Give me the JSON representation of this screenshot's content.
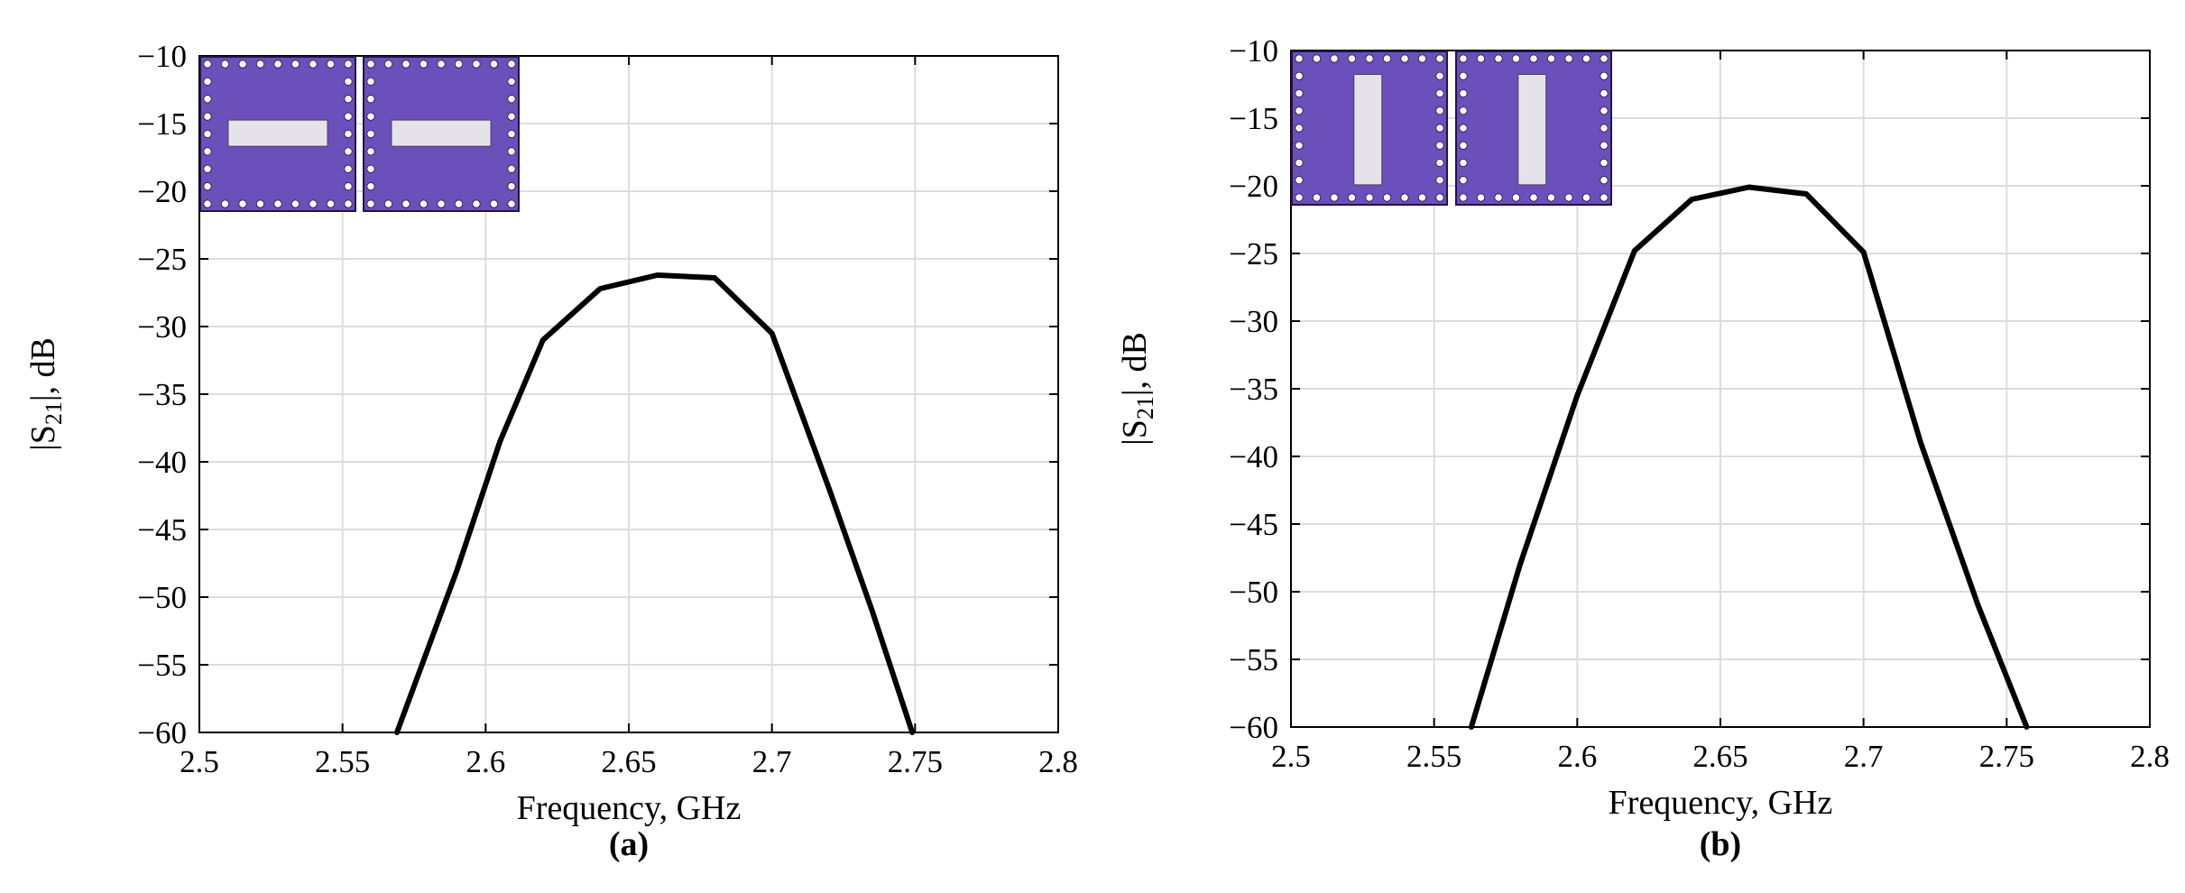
{
  "colors": {
    "curve": "#000000",
    "grid": "#dcdcdc",
    "inset_fill": "#6b4fbb",
    "inset_slot": "#e6e2e9",
    "inset_via": "#ffffff"
  },
  "chart_data": [
    {
      "type": "line",
      "panel_label": "(a)",
      "xlabel": "Frequency, GHz",
      "ylabel_prefix": "|S",
      "ylabel_sub": "21",
      "ylabel_suffix": "|, dB",
      "xlim": [
        2.5,
        2.8
      ],
      "ylim": [
        -60,
        -10
      ],
      "xticks": [
        2.5,
        2.55,
        2.6,
        2.65,
        2.7,
        2.75,
        2.8
      ],
      "xtick_labels": [
        "2.5",
        "2.55",
        "2.6",
        "2.65",
        "2.7",
        "2.75",
        "2.8"
      ],
      "yticks": [
        -10,
        -15,
        -20,
        -25,
        -30,
        -35,
        -40,
        -45,
        -50,
        -55,
        -60
      ],
      "ytick_labels": [
        "−10",
        "−15",
        "−20",
        "−25",
        "−30",
        "−35",
        "−40",
        "−45",
        "−50",
        "−55",
        "−60"
      ],
      "grid": true,
      "inset": "two via-fenced cavities with horizontal slots (top-left)",
      "inset_orientation": "horizontal",
      "series": [
        {
          "x": [
            2.569,
            2.59,
            2.605,
            2.62,
            2.64,
            2.66,
            2.68,
            2.7,
            2.72,
            2.735,
            2.749
          ],
          "y": [
            -60,
            -48,
            -38.5,
            -31,
            -27.2,
            -26.2,
            -26.4,
            -30.5,
            -42,
            -51,
            -60
          ]
        }
      ]
    },
    {
      "type": "line",
      "panel_label": "(b)",
      "xlabel": "Frequency, GHz",
      "ylabel_prefix": "|S",
      "ylabel_sub": "21",
      "ylabel_suffix": "|, dB",
      "xlim": [
        2.5,
        2.8
      ],
      "ylim": [
        -60,
        -10
      ],
      "xticks": [
        2.5,
        2.55,
        2.6,
        2.65,
        2.7,
        2.75,
        2.8
      ],
      "xtick_labels": [
        "2.5",
        "2.55",
        "2.6",
        "2.65",
        "2.7",
        "2.75",
        "2.8"
      ],
      "yticks": [
        -10,
        -15,
        -20,
        -25,
        -30,
        -35,
        -40,
        -45,
        -50,
        -55,
        -60
      ],
      "ytick_labels": [
        "−10",
        "−15",
        "−20",
        "−25",
        "−30",
        "−35",
        "−40",
        "−45",
        "−50",
        "−55",
        "−60"
      ],
      "grid": true,
      "inset": "two via-fenced cavities with vertical slots (top-left)",
      "inset_orientation": "vertical",
      "series": [
        {
          "x": [
            2.563,
            2.58,
            2.6,
            2.62,
            2.64,
            2.66,
            2.68,
            2.7,
            2.72,
            2.74,
            2.757
          ],
          "y": [
            -60,
            -48,
            -35.5,
            -24.8,
            -21,
            -20.1,
            -20.6,
            -24.9,
            -39,
            -51,
            -60
          ]
        }
      ]
    }
  ]
}
